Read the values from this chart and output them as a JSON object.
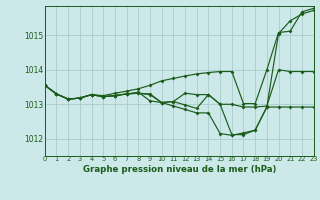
{
  "background_color": "#cce8e8",
  "grid_color": "#aacccc",
  "line_color": "#1a5c1a",
  "title": "Graphe pression niveau de la mer (hPa)",
  "xlim": [
    0,
    23
  ],
  "ylim": [
    1011.5,
    1015.85
  ],
  "xtick_labels": [
    "0",
    "1",
    "2",
    "3",
    "4",
    "5",
    "6",
    "7",
    "8",
    "9",
    "10",
    "11",
    "12",
    "13",
    "14",
    "15",
    "16",
    "17",
    "18",
    "19",
    "20",
    "21",
    "22",
    "23"
  ],
  "yticks": [
    1012,
    1013,
    1014,
    1015
  ],
  "series": [
    [
      1013.55,
      1013.3,
      1013.15,
      1013.18,
      1013.28,
      1013.22,
      1013.25,
      1013.3,
      1013.32,
      1013.3,
      1013.05,
      1013.08,
      1013.32,
      1013.28,
      1013.28,
      1013.0,
      1013.0,
      1012.92,
      1012.92,
      1012.95,
      1014.0,
      1013.95,
      1013.95,
      1013.95
    ],
    [
      1013.55,
      1013.3,
      1013.15,
      1013.18,
      1013.28,
      1013.22,
      1013.25,
      1013.3,
      1013.32,
      1013.28,
      1013.05,
      1013.08,
      1012.98,
      1012.88,
      1013.28,
      1013.0,
      1012.12,
      1012.12,
      1012.25,
      1012.92,
      1012.92,
      1012.92,
      1012.92,
      1012.92
    ],
    [
      1013.55,
      1013.3,
      1013.15,
      1013.18,
      1013.28,
      1013.22,
      1013.25,
      1013.3,
      1013.35,
      1013.1,
      1013.05,
      1012.95,
      1012.85,
      1012.75,
      1012.75,
      1012.15,
      1012.1,
      1012.17,
      1012.25,
      1012.92,
      1015.05,
      1015.42,
      1015.62,
      1015.72
    ],
    [
      1013.55,
      1013.3,
      1013.15,
      1013.18,
      1013.28,
      1013.25,
      1013.32,
      1013.38,
      1013.45,
      1013.55,
      1013.68,
      1013.75,
      1013.82,
      1013.88,
      1013.92,
      1013.95,
      1013.95,
      1013.02,
      1013.02,
      1014.0,
      1015.08,
      1015.12,
      1015.68,
      1015.78
    ]
  ]
}
